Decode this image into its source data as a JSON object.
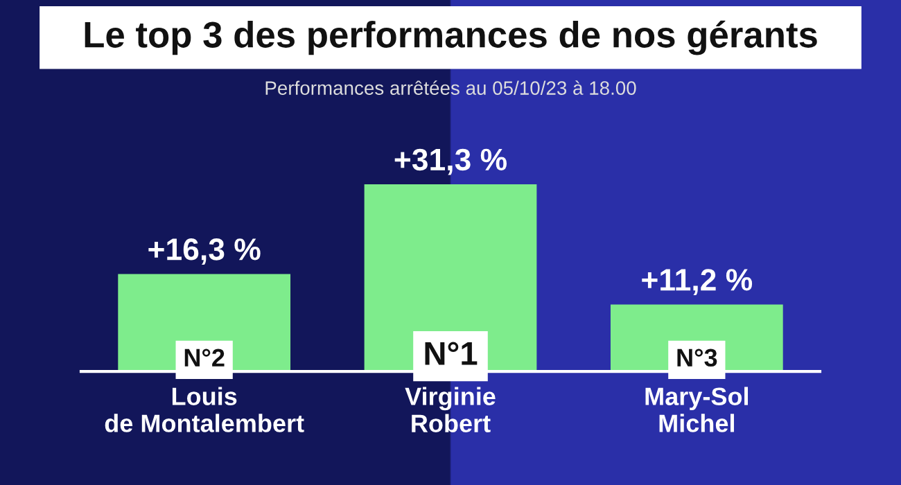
{
  "chart_data": {
    "type": "bar",
    "title": "Le top 3 des performances de nos gérants",
    "subtitle": "Performances arrêtées au 05/10/23 à 18.00",
    "categories": [
      "Louis\nde Montalembert",
      "Virginie\nRobert",
      "Mary-Sol\nMichel"
    ],
    "values": [
      16.3,
      31.3,
      11.2
    ],
    "color": "#7eec8c",
    "value_labels": [
      "+16,3 %",
      "+31,3 %",
      "+11,2 %"
    ],
    "annotations": [
      "N°2",
      "N°1",
      "N°3"
    ],
    "grid": false,
    "legend": false,
    "tick_labels": "x"
  }
}
